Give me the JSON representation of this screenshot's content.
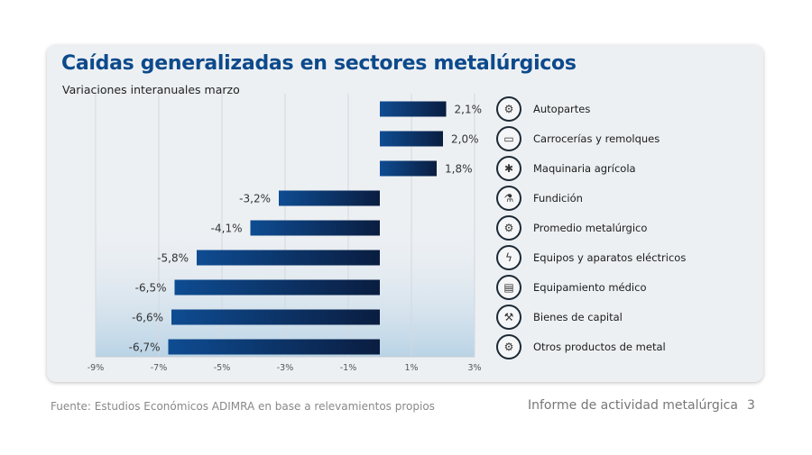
{
  "chart_data": {
    "type": "bar",
    "orientation": "horizontal",
    "title": "Caídas generalizadas en sectores metalúrgicos",
    "subtitle": "Variaciones interanuales marzo",
    "categories": [
      "Autopartes",
      "Carrocerías y remolques",
      "Maquinaria agrícola",
      "Fundición",
      "Promedio metalúrgico",
      "Equipos y aparatos eléctricos",
      "Equipamiento médico",
      "Bienes de capital",
      "Otros productos de metal"
    ],
    "values": [
      2.1,
      2.0,
      1.8,
      -3.2,
      -4.1,
      -5.8,
      -6.5,
      -6.6,
      -6.7
    ],
    "data_labels": [
      "2,1%",
      "2,0%",
      "1,8%",
      "-3,2%",
      "-4,1%",
      "-5,8%",
      "-6,5%",
      "-6,6%",
      "-6,7%"
    ],
    "xlim": [
      -9,
      3
    ],
    "x_ticks": [
      -9,
      -7,
      -5,
      -3,
      -1,
      1,
      3
    ],
    "x_tick_labels": [
      "-9%",
      "-7%",
      "-5%",
      "-3%",
      "-1%",
      "1%",
      "3%"
    ],
    "grid": "vertical",
    "legend": "right",
    "bar_colors": [
      "#0e4c92",
      "#0a1d40"
    ]
  },
  "legend_icons": [
    "car-parts-icon",
    "trailer-icon",
    "tractor-icon",
    "foundry-icon",
    "gears-icon",
    "electrical-icon",
    "medical-monitor-icon",
    "robot-arm-icon",
    "gears-icon"
  ],
  "icon_glyphs": [
    "⚙",
    "▭",
    "✱",
    "⚗",
    "⚙",
    "ϟ",
    "▤",
    "⚒",
    "⚙"
  ],
  "footer": {
    "source": "Fuente: Estudios Económicos ADIMRA en base a relevamientos propios",
    "report": "Informe de actividad metalúrgica",
    "page": "3"
  }
}
